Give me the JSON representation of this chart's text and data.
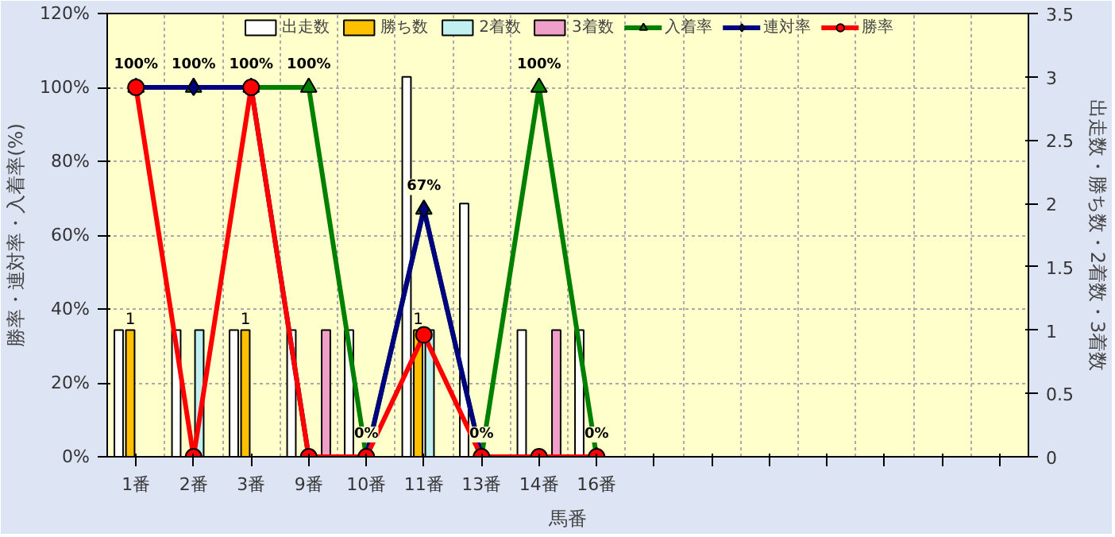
{
  "chart_data": {
    "type": "bar",
    "xlabel": "馬番",
    "ylabel": "勝率・連対率・入着率(%)",
    "y2label": "出走数・勝ち数・2着数・3着数",
    "categories": [
      "1番",
      "2番",
      "3番",
      "9番",
      "10番",
      "11番",
      "13番",
      "14番",
      "16番",
      null,
      null,
      null,
      null,
      null,
      null,
      null
    ],
    "series": [
      {
        "name": "出走数",
        "axis": "y2",
        "color": "#ffffff",
        "values": [
          1,
          1,
          1,
          1,
          1,
          3,
          2,
          1,
          1,
          null,
          null,
          null,
          null,
          null,
          null,
          null
        ]
      },
      {
        "name": "勝ち数",
        "axis": "y2",
        "color": "#ffc000",
        "values": [
          1,
          0,
          1,
          0,
          0,
          1,
          0,
          0,
          0,
          null,
          null,
          null,
          null,
          null,
          null,
          null
        ],
        "value_labels": [
          "1",
          null,
          "1",
          null,
          null,
          "1",
          null,
          null,
          null,
          null,
          null,
          null,
          null,
          null,
          null,
          null
        ]
      },
      {
        "name": "2着数",
        "axis": "y2",
        "color": "#c0f0f0",
        "values": [
          0,
          1,
          0,
          0,
          0,
          1,
          0,
          0,
          0,
          null,
          null,
          null,
          null,
          null,
          null,
          null
        ]
      },
      {
        "name": "3着数",
        "axis": "y2",
        "color": "#f0a0c8",
        "values": [
          0,
          0,
          0,
          1,
          0,
          0,
          0,
          1,
          0,
          null,
          null,
          null,
          null,
          null,
          null,
          null
        ]
      },
      {
        "name": "入着率",
        "type": "line",
        "color": "#008000",
        "marker": "triangle",
        "values": [
          100,
          100,
          100,
          100,
          0,
          67,
          0,
          100,
          0,
          null,
          null,
          null,
          null,
          null,
          null,
          null
        ],
        "value_labels": [
          "100%",
          "100%",
          "100%",
          "100%",
          "0%",
          "67%",
          "0%",
          "100%",
          "0%",
          null,
          null,
          null,
          null,
          null,
          null,
          null
        ]
      },
      {
        "name": "連対率",
        "type": "line",
        "color": "#000080",
        "marker": "diamond",
        "values": [
          100,
          100,
          100,
          0,
          0,
          67,
          0,
          0,
          0,
          null,
          null,
          null,
          null,
          null,
          null,
          null
        ]
      },
      {
        "name": "勝率",
        "type": "line",
        "color": "#ff0000",
        "marker": "circle",
        "values": [
          100,
          0,
          100,
          0,
          0,
          33,
          0,
          0,
          0,
          null,
          null,
          null,
          null,
          null,
          null,
          null
        ]
      }
    ],
    "ylim": [
      0,
      120
    ],
    "yticks": [
      {
        "value": 0,
        "label": "0%"
      },
      {
        "value": 20,
        "label": "20%"
      },
      {
        "value": 40,
        "label": "40%"
      },
      {
        "value": 60,
        "label": "60%"
      },
      {
        "value": 80,
        "label": "80%"
      },
      {
        "value": 100,
        "label": "100%"
      },
      {
        "value": 120,
        "label": "120%"
      }
    ],
    "y2lim": [
      0,
      3.5
    ],
    "y2ticks": [
      0,
      0.5,
      1,
      1.5,
      2,
      2.5,
      3,
      3.5
    ],
    "grid": true,
    "legend": "top"
  }
}
